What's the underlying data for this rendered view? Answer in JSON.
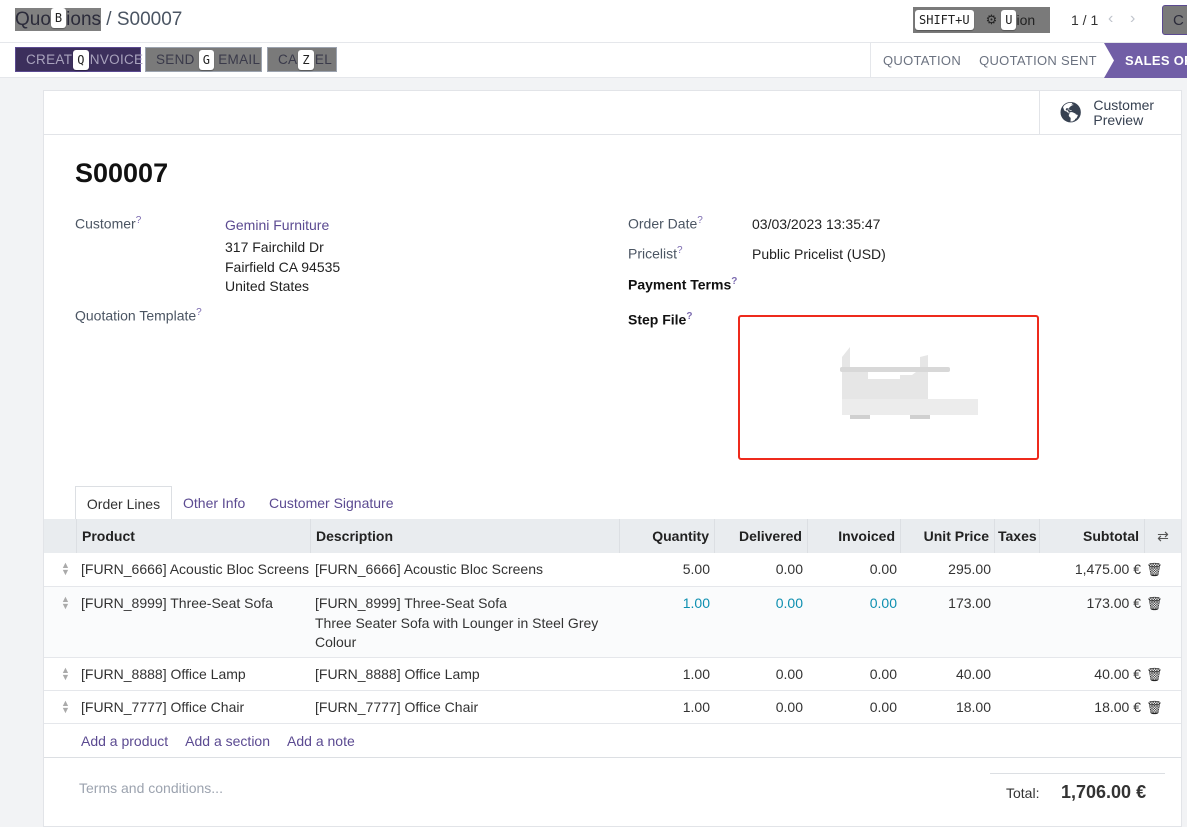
{
  "breadcrumb": {
    "parent": "Quotations",
    "parent_visible_start": "Quo",
    "parent_visible_end": "ions",
    "parent_key": "B",
    "separator": "/",
    "current": "S00007"
  },
  "header": {
    "shift_u": "SHIFT+U",
    "action_label": "Action",
    "action_visible_start": "",
    "action_visible_end": "ion",
    "action_key": "U",
    "pager": "1 / 1",
    "create_partial": "C"
  },
  "buttons": [
    {
      "label": "CREATE INVOICE",
      "visible_start": "CREAT",
      "visible_end": "NVOICE",
      "key": "Q"
    },
    {
      "label": "SEND BY EMAIL",
      "visible_start": "SEND",
      "visible_end": "EMAIL",
      "key": "G"
    },
    {
      "label": "CANCEL",
      "visible_start": "CA",
      "visible_end": "EL",
      "key": "Z"
    }
  ],
  "statusbar": [
    "QUOTATION",
    "QUOTATION SENT",
    "SALES ORDER"
  ],
  "customer_preview": {
    "line1": "Customer",
    "line2": "Preview"
  },
  "record": {
    "title": "S00007"
  },
  "fields": {
    "customer_label": "Customer",
    "customer_name": "Gemini Furniture",
    "address": [
      "317 Fairchild Dr",
      "Fairfield CA 94535",
      "United States"
    ],
    "template_label": "Quotation Template",
    "order_date_label": "Order Date",
    "order_date": "03/03/2023 13:35:47",
    "pricelist_label": "Pricelist",
    "pricelist": "Public Pricelist (USD)",
    "payment_terms_label": "Payment Terms",
    "step_file_label": "Step File",
    "help": "?"
  },
  "tabs": [
    "Order Lines",
    "Other Info",
    "Customer Signature"
  ],
  "table": {
    "headers": [
      "Product",
      "Description",
      "Quantity",
      "Delivered",
      "Invoiced",
      "Unit Price",
      "Taxes",
      "Subtotal"
    ],
    "rows": [
      {
        "product": "[FURN_6666] Acoustic Bloc Screens",
        "desc": [
          "[FURN_6666] Acoustic Bloc Screens"
        ],
        "qty": "5.00",
        "delivered": "0.00",
        "invoiced": "0.00",
        "price": "295.00",
        "taxes": "",
        "subtotal": "1,475.00 €"
      },
      {
        "product": "[FURN_8999] Three-Seat Sofa",
        "desc": [
          "[FURN_8999] Three-Seat Sofa",
          "Three Seater Sofa with Lounger in Steel Grey",
          "Colour"
        ],
        "qty": "1.00",
        "delivered": "0.00",
        "invoiced": "0.00",
        "price": "173.00",
        "taxes": "",
        "subtotal": "173.00 €"
      },
      {
        "product": "[FURN_8888] Office Lamp",
        "desc": [
          "[FURN_8888] Office Lamp"
        ],
        "qty": "1.00",
        "delivered": "0.00",
        "invoiced": "0.00",
        "price": "40.00",
        "taxes": "",
        "subtotal": "40.00 €"
      },
      {
        "product": "[FURN_7777] Office Chair",
        "desc": [
          "[FURN_7777] Office Chair"
        ],
        "qty": "1.00",
        "delivered": "0.00",
        "invoiced": "0.00",
        "price": "18.00",
        "taxes": "",
        "subtotal": "18.00 €"
      }
    ],
    "add_links": [
      "Add a product",
      "Add a section",
      "Add a note"
    ]
  },
  "footer": {
    "terms_placeholder": "Terms and conditions...",
    "total_label": "Total:",
    "total": "1,706.00 €"
  },
  "colors": {
    "primary": "#3c2f5c",
    "status_active": "#715ea6",
    "highlight_blue": "#0d8fb0",
    "step_file_border": "#ee2a1c"
  }
}
